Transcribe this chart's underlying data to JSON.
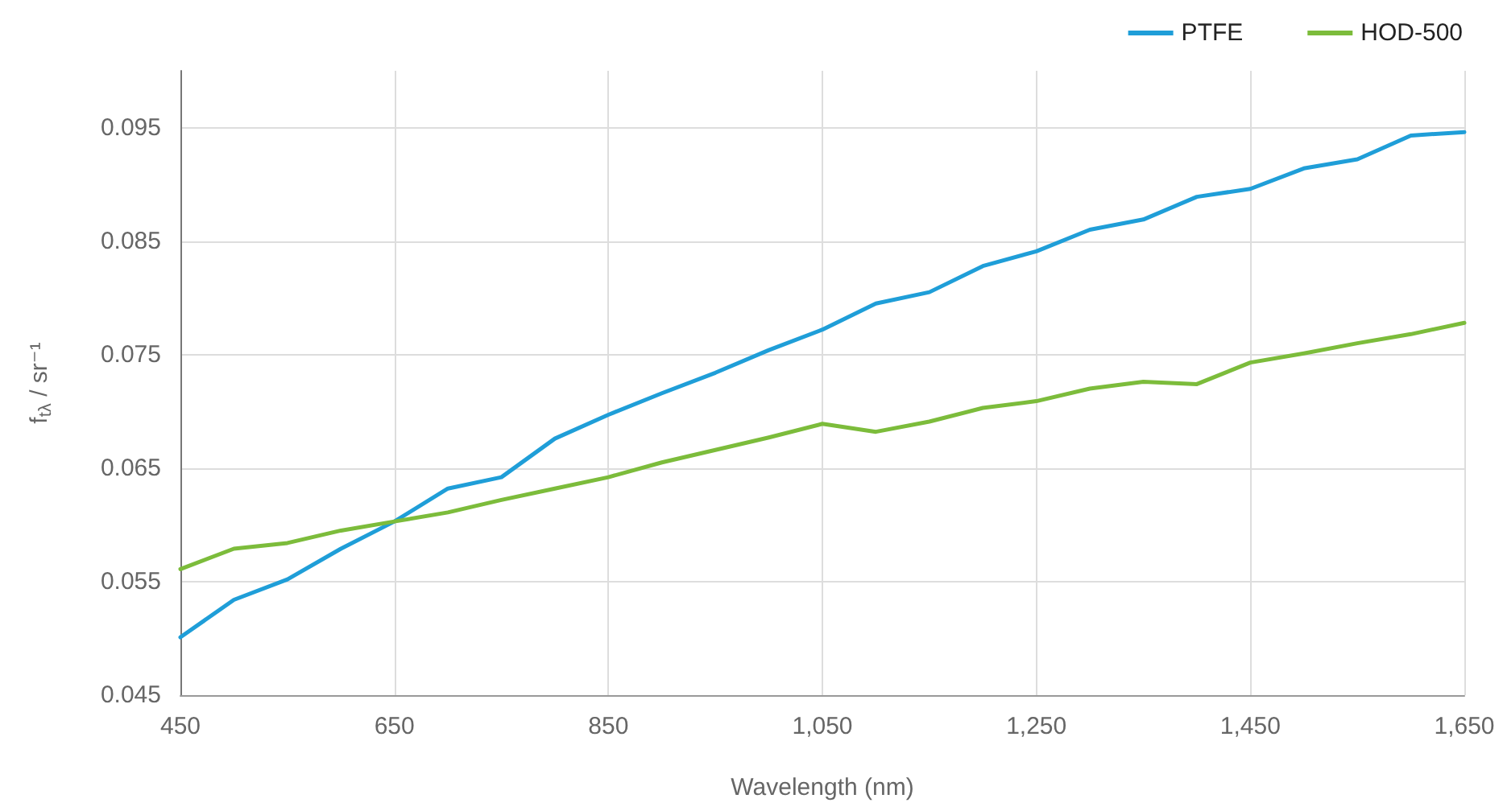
{
  "chart_data": {
    "type": "line",
    "xlabel": "Wavelength (nm)",
    "ylabel": "f$_{tλ}$ / sr⁻¹",
    "x": [
      450,
      500,
      550,
      600,
      650,
      700,
      750,
      800,
      850,
      900,
      950,
      1000,
      1050,
      1100,
      1150,
      1200,
      1250,
      1300,
      1350,
      1400,
      1450,
      1500,
      1550,
      1600,
      1650
    ],
    "series": [
      {
        "name": "PTFE",
        "color": "#1f9ed8",
        "values": [
          0.0501,
          0.0534,
          0.0552,
          0.0579,
          0.0603,
          0.0632,
          0.0642,
          0.0676,
          0.0697,
          0.0716,
          0.0734,
          0.0754,
          0.0772,
          0.0795,
          0.0805,
          0.0828,
          0.0841,
          0.086,
          0.0869,
          0.0889,
          0.0896,
          0.0914,
          0.0922,
          0.0943,
          0.0946
        ]
      },
      {
        "name": "HOD-500",
        "color": "#7cbc3b",
        "values": [
          0.0561,
          0.0579,
          0.0584,
          0.0595,
          0.0603,
          0.0611,
          0.0622,
          0.0632,
          0.0642,
          0.0655,
          0.0666,
          0.0677,
          0.0689,
          0.0682,
          0.0691,
          0.0703,
          0.0709,
          0.072,
          0.0726,
          0.0724,
          0.0743,
          0.0751,
          0.076,
          0.0768,
          0.0778
        ]
      }
    ],
    "xlim": [
      450,
      1650
    ],
    "xticks": [
      450,
      650,
      850,
      {
        "value": 1050,
        "label": "1,050"
      },
      {
        "value": 1250,
        "label": "1,250"
      },
      {
        "value": 1450,
        "label": "1,450"
      },
      {
        "value": 1650,
        "label": "1,650"
      }
    ],
    "ylim": [
      0.045,
      0.1
    ],
    "yticks": [
      0.045,
      0.055,
      0.065,
      0.075,
      0.085,
      0.095
    ],
    "grid": true,
    "legend": "top right",
    "marker": "none",
    "line_style": "solid"
  }
}
